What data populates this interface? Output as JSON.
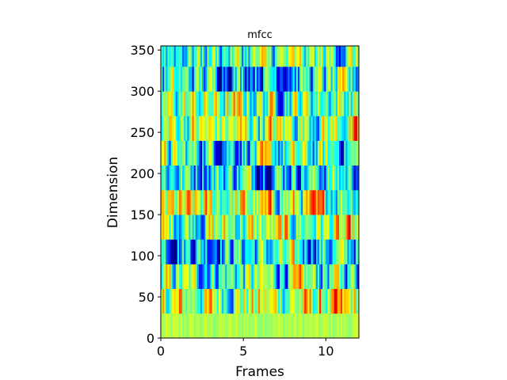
{
  "chart_data": {
    "type": "heatmap",
    "title": "mfcc",
    "xlabel": "Frames",
    "ylabel": "Dimension",
    "xlim": [
      0,
      12
    ],
    "ylim": [
      0,
      355
    ],
    "x_ticks": [
      0,
      5,
      10
    ],
    "y_ticks": [
      0,
      50,
      100,
      150,
      200,
      250,
      300,
      350
    ],
    "band_height": 30,
    "num_frames": 120,
    "colormap": "jet",
    "colormap_stops": [
      "#000080",
      "#0000ff",
      "#00ffff",
      "#ffff00",
      "#ff0000",
      "#800000"
    ],
    "grid": false,
    "legend": "none"
  }
}
